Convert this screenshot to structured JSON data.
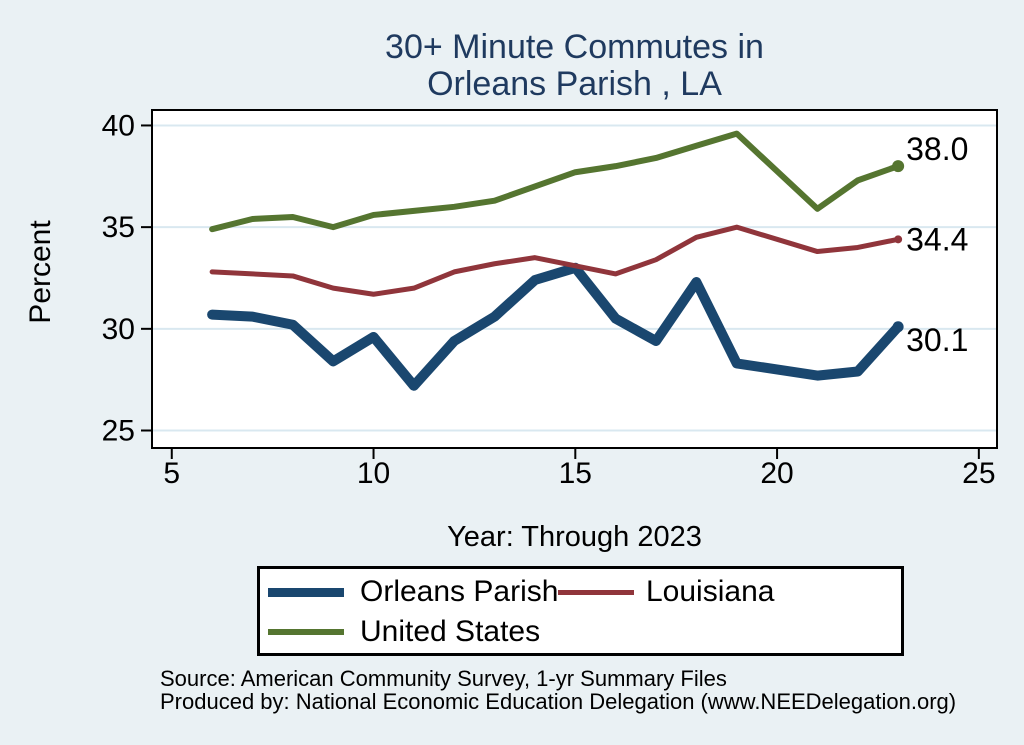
{
  "title": {
    "line1": "30+ Minute Commutes in",
    "line2": "Orleans Parish , LA"
  },
  "axes": {
    "y_title": "Percent",
    "x_title": "Year: Through 2023",
    "y_ticks": [
      25,
      30,
      35,
      40
    ],
    "x_ticks": [
      5,
      10,
      15,
      20,
      25
    ],
    "x_range": [
      4.51,
      25.45
    ],
    "y_range": [
      24.14,
      40.76
    ]
  },
  "chart_data": {
    "type": "line",
    "title": "30+ Minute Commutes in Orleans Parish , LA",
    "xlabel": "Year: Through 2023",
    "ylabel": "Percent",
    "xlim": [
      4.5,
      25.5
    ],
    "ylim": [
      24.1,
      40.8
    ],
    "grid": "horizontal",
    "legend_position": "bottom",
    "x": [
      6,
      7,
      8,
      9,
      10,
      11,
      12,
      13,
      14,
      15,
      16,
      17,
      18,
      19,
      21,
      22,
      23
    ],
    "series": [
      {
        "name": "Orleans Parish",
        "color": "#1a476f",
        "stroke_width": 10,
        "end_label": "30.1",
        "values": [
          30.7,
          30.6,
          30.2,
          28.4,
          29.6,
          27.2,
          29.4,
          30.6,
          32.4,
          33.0,
          30.5,
          29.4,
          32.3,
          28.3,
          27.7,
          27.9,
          30.1
        ]
      },
      {
        "name": "Louisiana",
        "color": "#90353b",
        "stroke_width": 5,
        "end_label": "34.4",
        "values": [
          32.8,
          32.7,
          32.6,
          32.0,
          31.7,
          32.0,
          32.8,
          33.2,
          33.5,
          33.1,
          32.7,
          33.4,
          34.5,
          35.0,
          33.8,
          34.0,
          34.4
        ]
      },
      {
        "name": "United States",
        "color": "#557530",
        "stroke_width": 6,
        "end_label": "38.0",
        "values": [
          34.9,
          35.4,
          35.5,
          35.0,
          35.6,
          35.8,
          36.0,
          36.3,
          37.0,
          37.7,
          38.0,
          38.4,
          39.0,
          39.6,
          35.9,
          37.3,
          38.0
        ]
      }
    ]
  },
  "legend": {
    "items": [
      {
        "label": "Orleans Parish",
        "color": "#1a476f",
        "thickness": 9
      },
      {
        "label": "Louisiana",
        "color": "#90353b",
        "thickness": 5
      },
      {
        "label": "United States",
        "color": "#557530",
        "thickness": 6
      }
    ]
  },
  "footer": {
    "line1": "Source: American Community Survey, 1-yr Summary Files",
    "line2": "Produced by: National Economic Education Delegation (www.NEEDelegation.org)"
  },
  "colors": {
    "background": "#eaf1f4",
    "plot_background": "#ffffff",
    "grid": "#d9e8f0",
    "axis": "#000000",
    "title": "#1f3a5f",
    "text": "#000000"
  }
}
